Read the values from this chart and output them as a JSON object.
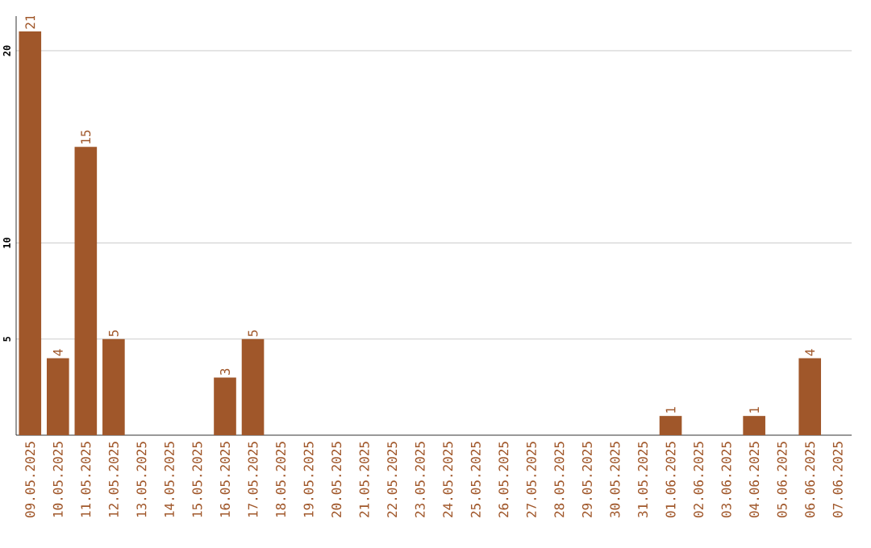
{
  "chart_data": {
    "type": "bar",
    "categories": [
      "09.05.2025",
      "10.05.2025",
      "11.05.2025",
      "12.05.2025",
      "13.05.2025",
      "14.05.2025",
      "15.05.2025",
      "16.05.2025",
      "17.05.2025",
      "18.05.2025",
      "19.05.2025",
      "20.05.2025",
      "21.05.2025",
      "22.05.2025",
      "23.05.2025",
      "24.05.2025",
      "25.05.2025",
      "26.05.2025",
      "27.05.2025",
      "28.05.2025",
      "29.05.2025",
      "30.05.2025",
      "31.05.2025",
      "01.06.2025",
      "02.06.2025",
      "03.06.2025",
      "04.06.2025",
      "05.06.2025",
      "06.06.2025",
      "07.06.2025"
    ],
    "values": [
      21,
      4,
      15,
      5,
      0,
      0,
      0,
      3,
      5,
      0,
      0,
      0,
      0,
      0,
      0,
      0,
      0,
      0,
      0,
      0,
      0,
      0,
      0,
      1,
      0,
      0,
      1,
      0,
      4,
      0
    ],
    "value_labels": [
      "21",
      "4",
      "15",
      "5",
      null,
      null,
      null,
      "3",
      "5",
      null,
      null,
      null,
      null,
      null,
      null,
      null,
      null,
      null,
      null,
      null,
      null,
      null,
      null,
      "1",
      null,
      null,
      "1",
      null,
      "4",
      null
    ],
    "color": "#a0572a",
    "ylim": [
      0,
      21.8
    ],
    "yticks": [
      5,
      10,
      20
    ],
    "grid": "y"
  }
}
